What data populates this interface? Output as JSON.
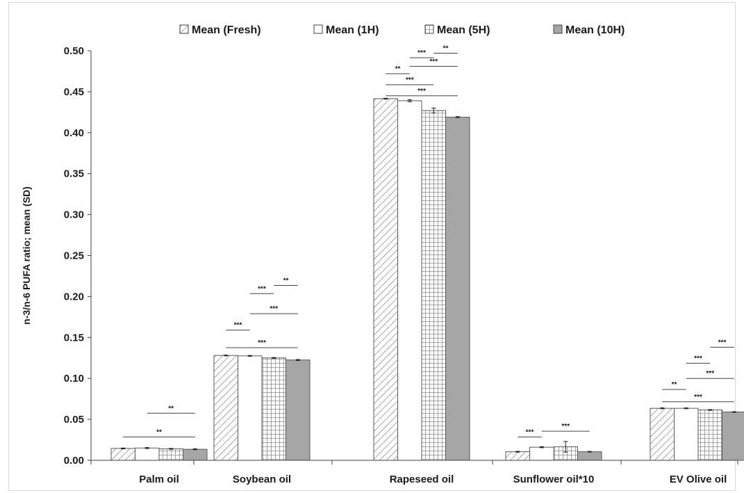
{
  "chart_data": {
    "type": "bar",
    "title": "",
    "xlabel": "",
    "ylabel": "n-3/n-6 PUFA ratio; mean (SD)",
    "ylim": [
      0,
      0.5
    ],
    "yticks": [
      "0.00",
      "0.05",
      "0.10",
      "0.15",
      "0.20",
      "0.25",
      "0.30",
      "0.35",
      "0.40",
      "0.45",
      "0.50"
    ],
    "ytick_values": [
      0,
      0.05,
      0.1,
      0.15,
      0.2,
      0.25,
      0.3,
      0.35,
      0.4,
      0.45,
      0.5
    ],
    "grid": false,
    "legend_position": "top",
    "categories": [
      "Palm oil",
      "Soybean oil",
      "Rapeseed oil",
      "Sunflower oil*10",
      "EV Olive oil"
    ],
    "series": [
      {
        "name": "Mean (Fresh)",
        "pattern": "diagonal-hatch",
        "color": "#ffffff",
        "values": [
          0.0145,
          0.128,
          0.4415,
          0.0105,
          0.0635
        ],
        "sd": [
          0.0005,
          0.0005,
          0.0005,
          0.0005,
          0.0005
        ]
      },
      {
        "name": "Mean (1H)",
        "pattern": "none",
        "color": "#ffffff",
        "values": [
          0.015,
          0.1275,
          0.439,
          0.016,
          0.0635
        ],
        "sd": [
          0.0006,
          0.0005,
          0.0012,
          0.0006,
          0.0005
        ]
      },
      {
        "name": "Mean (5H)",
        "pattern": "grid",
        "color": "#ffffff",
        "values": [
          0.014,
          0.125,
          0.427,
          0.0165,
          0.0615
        ],
        "sd": [
          0.0005,
          0.0005,
          0.003,
          0.0065,
          0.0005
        ]
      },
      {
        "name": "Mean (10H)",
        "pattern": "solid",
        "color": "#a6a6a6",
        "values": [
          0.0135,
          0.1225,
          0.419,
          0.0105,
          0.059
        ],
        "sd": [
          0.0005,
          0.0006,
          0.0006,
          0.0004,
          0.0004
        ]
      }
    ],
    "significance": [
      {
        "category": 0,
        "from": 0,
        "to": 3,
        "label": "**",
        "y": 0.0285
      },
      {
        "category": 0,
        "from": 1,
        "to": 3,
        "label": "**",
        "y": 0.0575
      },
      {
        "category": 1,
        "from": 0,
        "to": 3,
        "label": "***",
        "y": 0.1375
      },
      {
        "category": 1,
        "from": 0,
        "to": 1,
        "label": "***",
        "y": 0.159
      },
      {
        "category": 1,
        "from": 1,
        "to": 3,
        "label": "***",
        "y": 0.179
      },
      {
        "category": 1,
        "from": 1,
        "to": 2,
        "label": "***",
        "y": 0.2035
      },
      {
        "category": 1,
        "from": 2,
        "to": 3,
        "label": "**",
        "y": 0.2135
      },
      {
        "category": 2,
        "from": 0,
        "to": 3,
        "label": "***",
        "y": 0.445
      },
      {
        "category": 2,
        "from": 0,
        "to": 2,
        "label": "***",
        "y": 0.4585
      },
      {
        "category": 2,
        "from": 0,
        "to": 1,
        "label": "**",
        "y": 0.472
      },
      {
        "category": 2,
        "from": 1,
        "to": 3,
        "label": "***",
        "y": 0.481
      },
      {
        "category": 2,
        "from": 1,
        "to": 2,
        "label": "***",
        "y": 0.4915
      },
      {
        "category": 2,
        "from": 2,
        "to": 3,
        "label": "**",
        "y": 0.497
      },
      {
        "category": 3,
        "from": 0,
        "to": 1,
        "label": "***",
        "y": 0.0285
      },
      {
        "category": 3,
        "from": 1,
        "to": 3,
        "label": "***",
        "y": 0.0355
      },
      {
        "category": 4,
        "from": 0,
        "to": 3,
        "label": "***",
        "y": 0.0715
      },
      {
        "category": 4,
        "from": 0,
        "to": 1,
        "label": "**",
        "y": 0.0865
      },
      {
        "category": 4,
        "from": 1,
        "to": 3,
        "label": "***",
        "y": 0.1
      },
      {
        "category": 4,
        "from": 1,
        "to": 2,
        "label": "***",
        "y": 0.1185
      },
      {
        "category": 4,
        "from": 2,
        "to": 3,
        "label": "***",
        "y": 0.138
      }
    ]
  }
}
